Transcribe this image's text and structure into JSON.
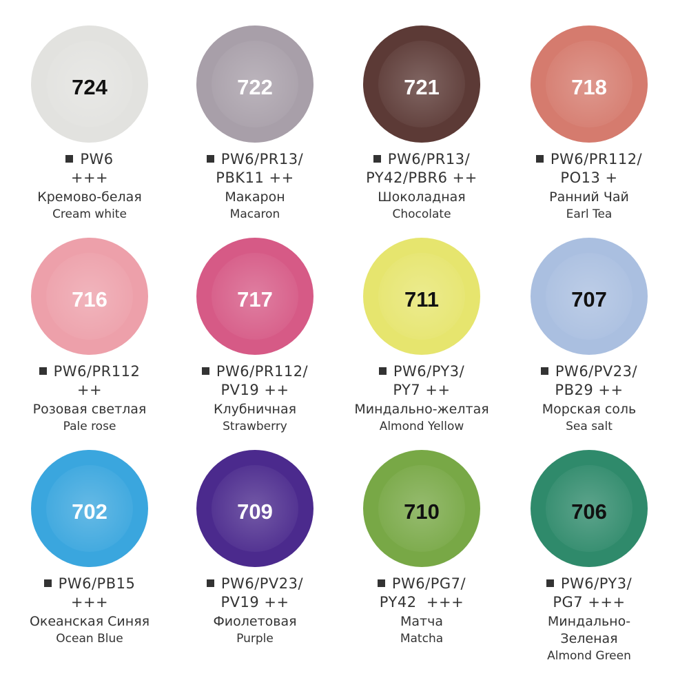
{
  "swatches": [
    {
      "code": "724",
      "color": "#e2e2df",
      "code_color": "#111111",
      "pigments": [
        "PW6",
        "+++"
      ],
      "name_ru": [
        "Кремово-белая"
      ],
      "name_en": "Cream white"
    },
    {
      "code": "722",
      "color": "#a89fa9",
      "code_color": "#ffffff",
      "pigments": [
        "PW6/PR13/",
        "PBK11 ++"
      ],
      "name_ru": [
        "Макарон"
      ],
      "name_en": "Macaron"
    },
    {
      "code": "721",
      "color": "#5c3a36",
      "code_color": "#ffffff",
      "pigments": [
        "PW6/PR13/",
        "PY42/PBR6 ++"
      ],
      "name_ru": [
        "Шоколадная"
      ],
      "name_en": "Chocolate"
    },
    {
      "code": "718",
      "color": "#d57b6e",
      "code_color": "#ffffff",
      "pigments": [
        "PW6/PR112/",
        "PO13 +"
      ],
      "name_ru": [
        "Ранний Чай"
      ],
      "name_en": "Earl Tea"
    },
    {
      "code": "716",
      "color": "#eda0aa",
      "code_color": "#ffffff",
      "pigments": [
        "PW6/PR112",
        "++"
      ],
      "name_ru": [
        "Розовая светлая"
      ],
      "name_en": "Pale rose"
    },
    {
      "code": "717",
      "color": "#d65a86",
      "code_color": "#ffffff",
      "pigments": [
        "PW6/PR112/",
        "PV19 ++"
      ],
      "name_ru": [
        "Клубничная"
      ],
      "name_en": "Strawberry"
    },
    {
      "code": "711",
      "color": "#e6e56e",
      "code_color": "#111111",
      "pigments": [
        "PW6/PY3/",
        "PY7 ++"
      ],
      "name_ru": [
        "Миндально-желтая"
      ],
      "name_en": "Almond Yellow"
    },
    {
      "code": "707",
      "color": "#aabfe0",
      "code_color": "#111111",
      "pigments": [
        "PW6/PV23/",
        "PB29 ++"
      ],
      "name_ru": [
        "Морская соль"
      ],
      "name_en": "Sea salt"
    },
    {
      "code": "702",
      "color": "#3aa6de",
      "code_color": "#ffffff",
      "pigments": [
        "PW6/PB15",
        "+++"
      ],
      "name_ru": [
        "Океанская Синяя"
      ],
      "name_en": "Ocean Blue"
    },
    {
      "code": "709",
      "color": "#4b2a8d",
      "code_color": "#ffffff",
      "pigments": [
        "PW6/PV23/",
        "PV19 ++"
      ],
      "name_ru": [
        "Фиолетовая"
      ],
      "name_en": "Purple"
    },
    {
      "code": "710",
      "color": "#78a846",
      "code_color": "#111111",
      "pigments": [
        "PW6/PG7/",
        "PY42  +++"
      ],
      "name_ru": [
        "Матча"
      ],
      "name_en": "Matcha"
    },
    {
      "code": "706",
      "color": "#2f8a6b",
      "code_color": "#111111",
      "pigments": [
        "PW6/PY3/",
        "PG7 +++"
      ],
      "name_ru": [
        "Миндально-",
        "Зеленая"
      ],
      "name_en": "Almond Green"
    }
  ]
}
